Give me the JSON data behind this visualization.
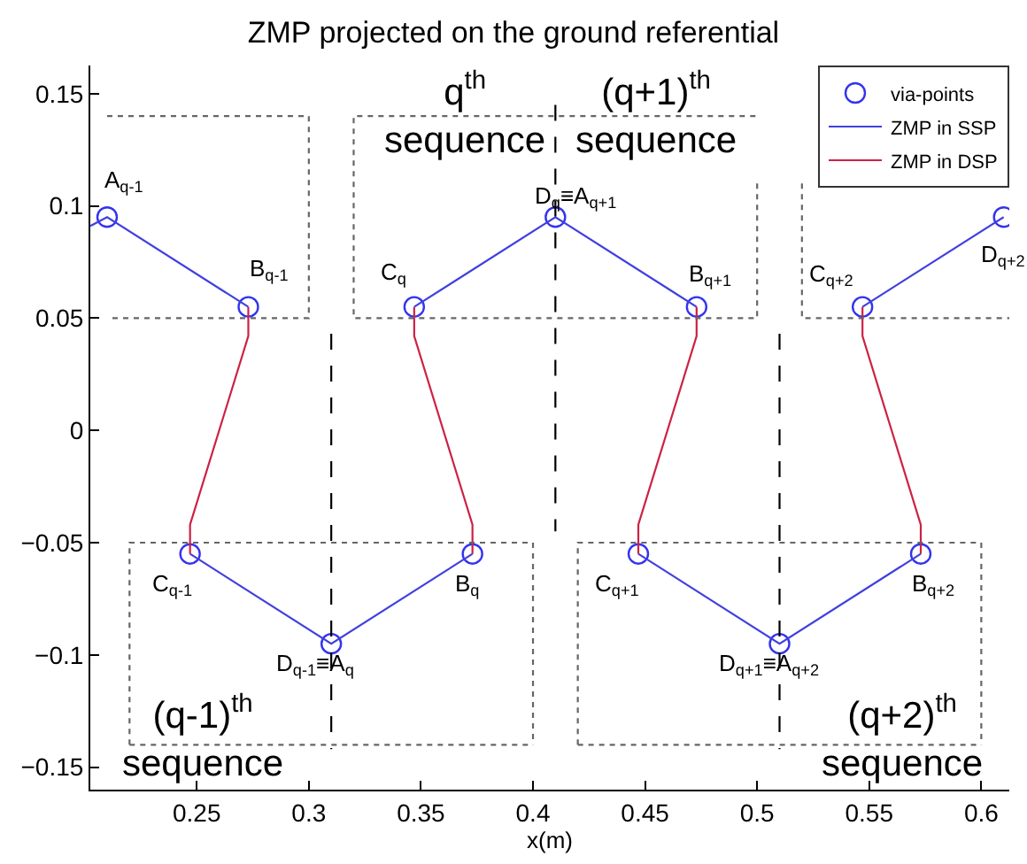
{
  "chart_data": {
    "type": "line",
    "title": "ZMP projected on the ground referential",
    "xlabel": "x(m)",
    "xlim": [
      0.2025,
      0.6125
    ],
    "ylim": [
      -0.16,
      0.1625
    ],
    "xticks": [
      0.25,
      0.3,
      0.35,
      0.4,
      0.45,
      0.5,
      0.55,
      0.6
    ],
    "yticks": [
      {
        "value": -0.15,
        "label": "−0.15"
      },
      {
        "value": -0.1,
        "label": "−0.1"
      },
      {
        "value": -0.05,
        "label": "−0.05"
      },
      0,
      0.05,
      0.1,
      0.15
    ],
    "legend": "top right",
    "series": [
      {
        "name": "via-points",
        "type": "scatter",
        "marker": "circle",
        "color": "#3333ee",
        "x": [
          0.21,
          0.273,
          0.247,
          0.31,
          0.373,
          0.347,
          0.41,
          0.473,
          0.447,
          0.51,
          0.573,
          0.547,
          0.61
        ],
        "values": [
          0.095,
          0.055,
          -0.055,
          -0.095,
          -0.055,
          0.055,
          0.095,
          0.055,
          -0.055,
          -0.095,
          -0.055,
          0.055,
          0.095
        ]
      },
      {
        "name": "ZMP in SSP",
        "line_style": "solid",
        "color": "#4040e0",
        "x": [
          0.2025,
          0.21,
          0.273,
          null,
          0.247,
          0.31,
          0.373,
          null,
          0.347,
          0.41,
          0.473,
          null,
          0.447,
          0.51,
          0.573,
          null,
          0.547,
          0.61
        ],
        "values": [
          0.091,
          0.095,
          0.055,
          null,
          -0.055,
          -0.095,
          -0.055,
          null,
          0.055,
          0.095,
          0.055,
          null,
          -0.055,
          -0.095,
          -0.055,
          null,
          0.055,
          0.095
        ]
      },
      {
        "name": "ZMP in DSP",
        "line_style": "solid",
        "color": "#cc2244",
        "x": [
          0.273,
          0.273,
          0.247,
          0.247,
          null,
          0.373,
          0.373,
          0.347,
          0.347,
          null,
          0.473,
          0.473,
          0.447,
          0.447,
          null,
          0.573,
          0.573,
          0.547,
          0.547
        ],
        "values": [
          0.055,
          0.042,
          -0.042,
          -0.055,
          null,
          -0.055,
          -0.042,
          0.042,
          0.055,
          null,
          0.055,
          0.042,
          -0.042,
          -0.055,
          null,
          -0.055,
          -0.042,
          0.042,
          0.055
        ]
      },
      {
        "line_style": "dashed",
        "color": "#000000",
        "x": [
          0.31,
          0.31,
          null,
          0.41,
          0.41,
          null,
          0.51,
          0.51
        ],
        "values": [
          0.043,
          -0.142,
          null,
          0.145,
          -0.045,
          null,
          0.043,
          -0.142
        ]
      },
      {
        "line_style": "dotted",
        "color": "#666666",
        "x": [
          0.21,
          0.3,
          0.3,
          0.21,
          null,
          0.5,
          0.5,
          0.32,
          0.32,
          0.5,
          null,
          0.52,
          0.52,
          0.6125
        ],
        "values": [
          0.14,
          0.14,
          0.05,
          0.05,
          null,
          0.11,
          0.05,
          0.05,
          0.14,
          0.14,
          null,
          0.11,
          0.05,
          0.05
        ]
      },
      {
        "line_style": "dotted",
        "color": "#666666",
        "x": [
          0.22,
          0.22,
          0.4,
          0.4,
          null,
          0.22,
          0.4,
          null,
          0.42,
          0.42,
          0.6,
          0.6,
          null,
          0.42,
          0.6
        ],
        "values": [
          -0.14,
          -0.05,
          -0.05,
          -0.14,
          null,
          -0.14,
          -0.14,
          null,
          -0.14,
          -0.05,
          -0.05,
          -0.14,
          null,
          -0.14,
          -0.14
        ]
      }
    ],
    "annotations": [
      {
        "text": "A$_{q-1}$",
        "x": 0.21,
        "y": 0.095
      },
      {
        "text": "B$_{q-1}$",
        "x": 0.273,
        "y": 0.055
      },
      {
        "text": "C$_{q}$",
        "x": 0.347,
        "y": 0.055
      },
      {
        "text": "D$_{q}$≡A$_{q+1}$",
        "x": 0.41,
        "y": 0.095
      },
      {
        "text": "B$_{q+1}$",
        "x": 0.473,
        "y": 0.055
      },
      {
        "text": "C$_{q+2}$",
        "x": 0.547,
        "y": 0.055
      },
      {
        "text": "D$_{q+2}$",
        "x": 0.61,
        "y": 0.095
      },
      {
        "text": "C$_{q-1}$",
        "x": 0.247,
        "y": -0.055
      },
      {
        "text": "B$_{q}$",
        "x": 0.373,
        "y": -0.055
      },
      {
        "text": "D$_{q-1}$≡A$_{q}$",
        "x": 0.31,
        "y": -0.095
      },
      {
        "text": "C$_{q+1}$",
        "x": 0.447,
        "y": -0.055
      },
      {
        "text": "B$_{q+2}$",
        "x": 0.573,
        "y": -0.055
      },
      {
        "text": "D$_{q+1}$≡A$_{q+2}$",
        "x": 0.51,
        "y": -0.095
      },
      "q$^{th}$\nsequence",
      "(q+1)$^{th}$\nsequence",
      "(q-1)$^{th}$\nsequence",
      "(q+2)$^{th}$\nsequence"
    ]
  }
}
